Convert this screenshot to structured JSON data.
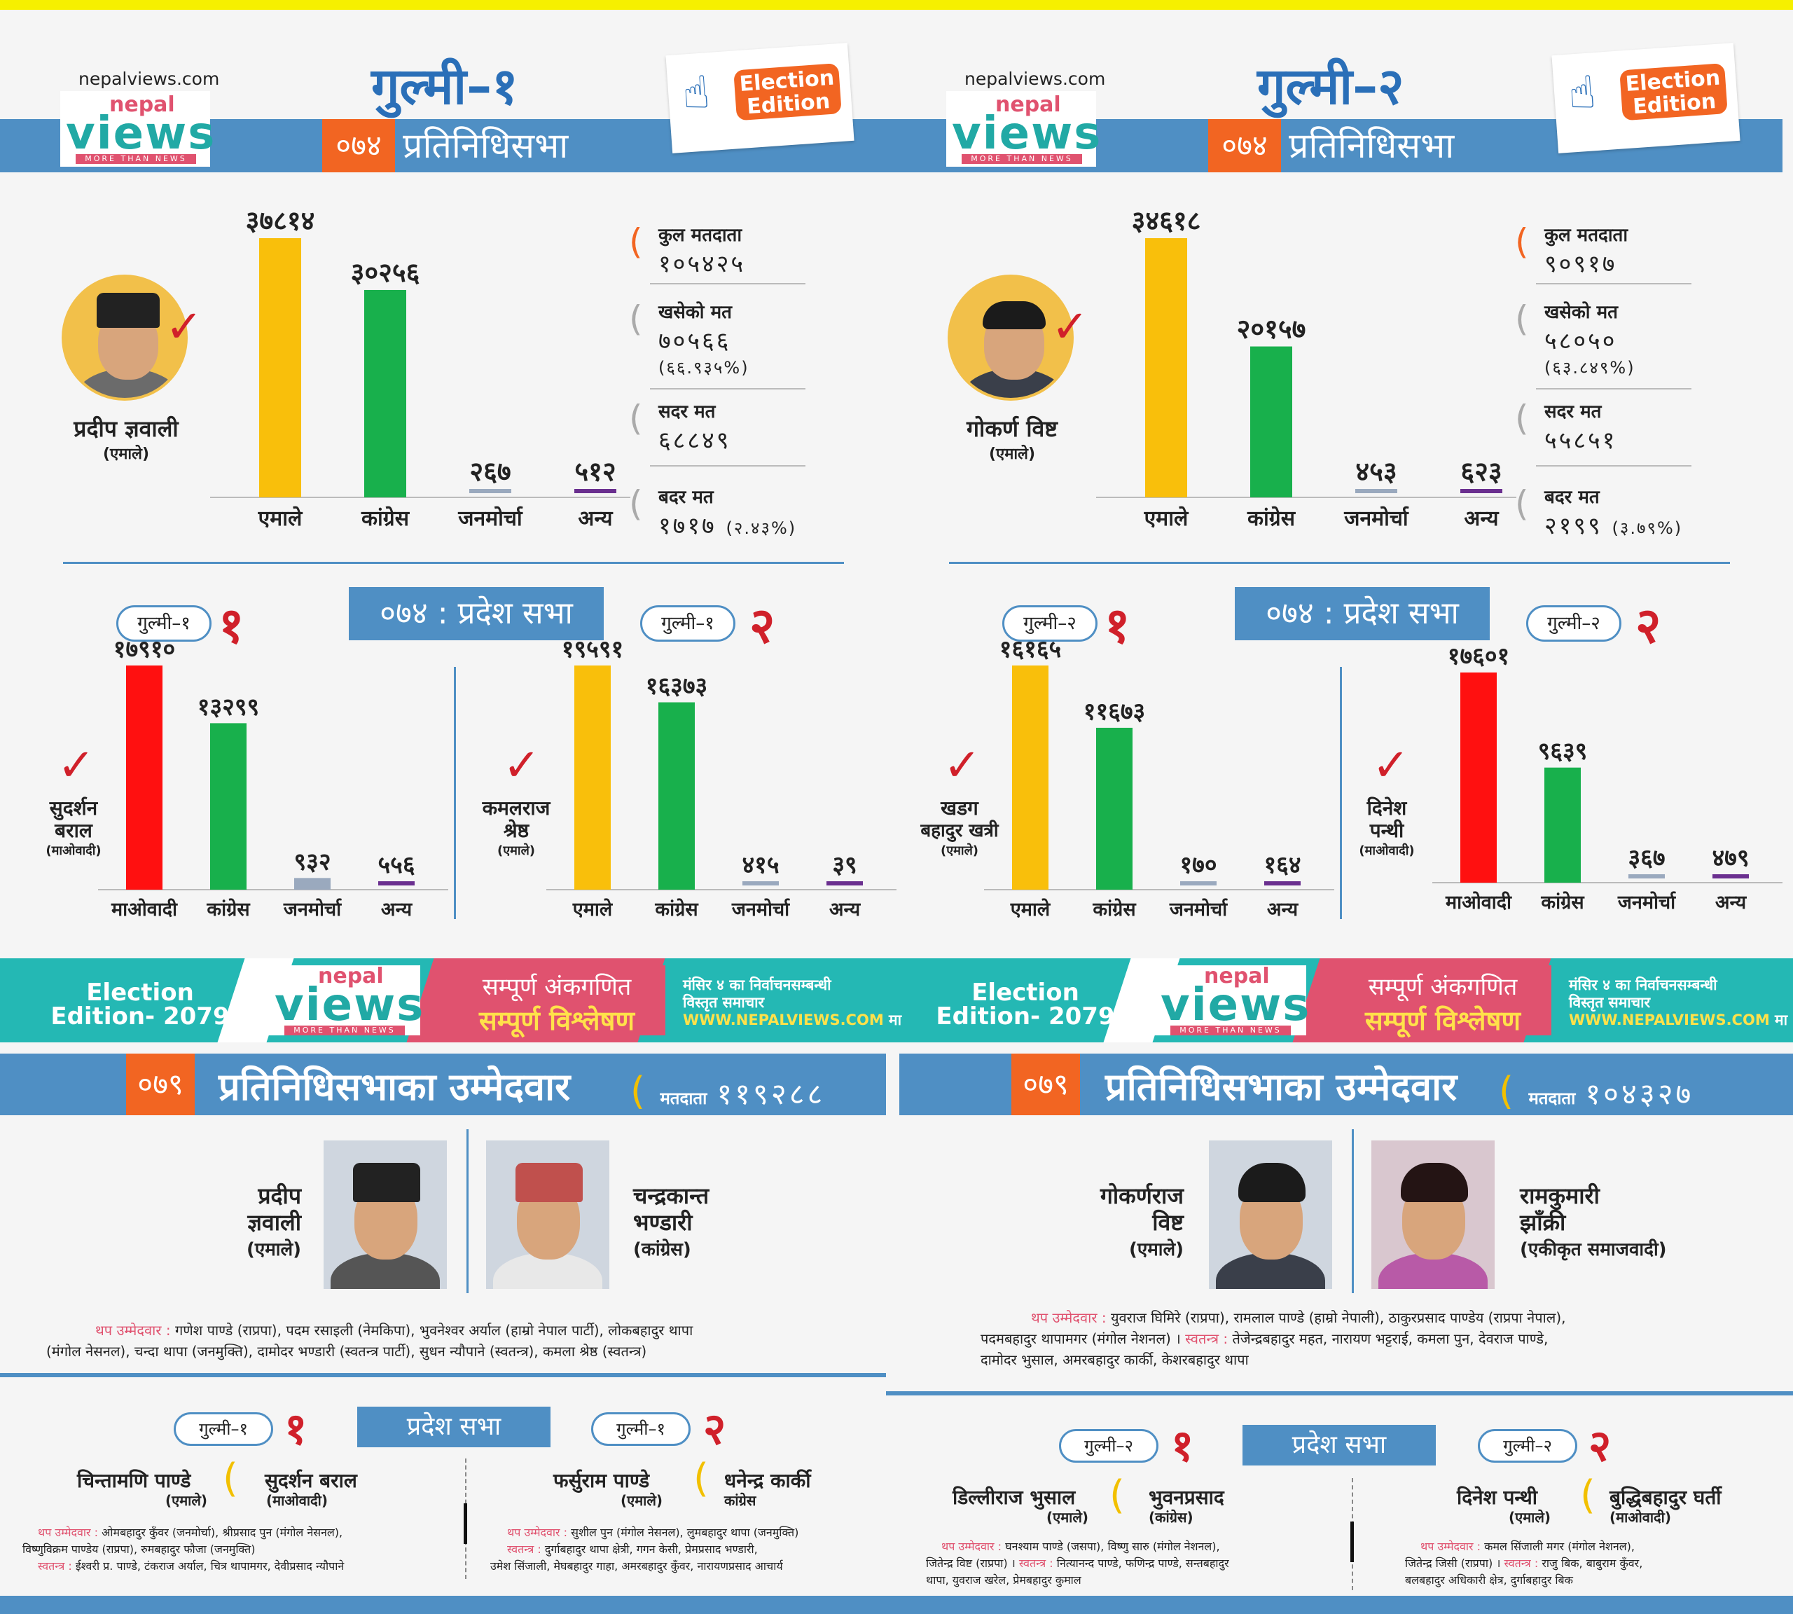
{
  "colors": {
    "uml": "#f9bf0b",
    "congress": "#18b04c",
    "janamorcha": "#9aa9be",
    "anya": "#6a2f8f",
    "maoist": "#ff1010",
    "accent": "#4f8fc4",
    "orange": "#f26522",
    "red": "#d0202a"
  },
  "site": "nepalviews.com",
  "logo": {
    "top": "nepal",
    "main": "views",
    "tag": "MORE THAN NEWS"
  },
  "badge": "Election Edition",
  "hor_label": "प्रतिनिधिसभा",
  "year74": "०७४",
  "pradesh_title": "०७४ : प्रदेश सभा",
  "panels": [
    {
      "seat": "गुल्मी–१",
      "winner": {
        "name": "प्रदीप ज्ञवाली",
        "party": "(एमाले)"
      },
      "stats": {
        "kul_label": "कुल मतदाता",
        "kul": "१०५४२५",
        "khaseko_label": "खसेको मत",
        "khaseko": "७०५६६",
        "khaseko_pct": "(६६.९३५%)",
        "sadar_label": "सदर मत",
        "sadar": "६८८४९",
        "badar_label": "बदर मत",
        "badar": "१७१७",
        "badar_pct": "(२.४३%)"
      },
      "pill1": "गुल्मी–१",
      "num1": "१",
      "pill2": "गुल्मी–१",
      "num2": "२",
      "p1_winner": {
        "name1": "सुदर्शन",
        "name2": "बराल",
        "party": "(माओवादी)"
      },
      "p2_winner": {
        "name1": "कमलराज",
        "name2": "श्रेष्ठ",
        "party": "(एमाले)"
      }
    },
    {
      "seat": "गुल्मी–२",
      "winner": {
        "name": "गोकर्ण विष्ट",
        "party": "(एमाले)"
      },
      "stats": {
        "kul_label": "कुल मतदाता",
        "kul": "९०९१७",
        "khaseko_label": "खसेको मत",
        "khaseko": "५८०५०",
        "khaseko_pct": "(६३.८४९%)",
        "sadar_label": "सदर मत",
        "sadar": "५५८५१",
        "badar_label": "बदर मत",
        "badar": "२१९९",
        "badar_pct": "(३.७९%)"
      },
      "pill1": "गुल्मी–२",
      "num1": "१",
      "pill2": "गुल्मी–२",
      "num2": "२",
      "p1_winner": {
        "name1": "खडग",
        "name2": "बहादुर खत्री",
        "party": "(एमाले)"
      },
      "p2_winner": {
        "name1": "दिनेश",
        "name2": "पन्थी",
        "party": "(माओवादी)"
      }
    }
  ],
  "chart_data": [
    {
      "type": "bar",
      "title": "गुल्मी–१ प्रतिनिधिसभा",
      "categories": [
        "एमाले",
        "कांग्रेस",
        "जनमोर्चा",
        "अन्य"
      ],
      "values": [
        37814,
        30256,
        267,
        512
      ],
      "labels": [
        "३७८१४",
        "३०२५६",
        "२६७",
        "५१२"
      ],
      "colors": [
        "uml",
        "congress",
        "janamorcha",
        "anya"
      ]
    },
    {
      "type": "bar",
      "title": "गुल्मी–२ प्रतिनिधिसभा",
      "categories": [
        "एमाले",
        "कांग्रेस",
        "जनमोर्चा",
        "अन्य"
      ],
      "values": [
        34618,
        20157,
        453,
        623
      ],
      "labels": [
        "३४६१८",
        "२०१५७",
        "४५३",
        "६२३"
      ],
      "colors": [
        "uml",
        "congress",
        "janamorcha",
        "anya"
      ]
    },
    {
      "type": "bar",
      "title": "गुल्मी–१ प्रदेश १",
      "categories": [
        "माओवादी",
        "कांग्रेस",
        "जनमोर्चा",
        "अन्य"
      ],
      "values": [
        17910,
        13299,
        932,
        556
      ],
      "labels": [
        "१७९१०",
        "१३२९९",
        "९३२",
        "५५६"
      ],
      "colors": [
        "maoist",
        "congress",
        "janamorcha",
        "anya"
      ]
    },
    {
      "type": "bar",
      "title": "गुल्मी–१ प्रदेश २",
      "categories": [
        "एमाले",
        "कांग्रेस",
        "जनमोर्चा",
        "अन्य"
      ],
      "values": [
        19591,
        16373,
        415,
        39
      ],
      "labels": [
        "१९५९१",
        "१६३७३",
        "४१५",
        "३९"
      ],
      "colors": [
        "uml",
        "congress",
        "janamorcha",
        "anya"
      ]
    },
    {
      "type": "bar",
      "title": "गुल्मी–२ प्रदेश १",
      "categories": [
        "एमाले",
        "कांग्रेस",
        "जनमोर्चा",
        "अन्य"
      ],
      "values": [
        16165,
        11673,
        170,
        164
      ],
      "labels": [
        "१६१६५",
        "११६७३",
        "१७०",
        "१६४"
      ],
      "colors": [
        "uml",
        "congress",
        "janamorcha",
        "anya"
      ]
    },
    {
      "type": "bar",
      "title": "गुल्मी–२ प्रदेश २",
      "categories": [
        "माओवादी",
        "कांग्रेस",
        "जनमोर्चा",
        "अन्य"
      ],
      "values": [
        17601,
        9639,
        367,
        479
      ],
      "labels": [
        "१७६०१",
        "९६३९",
        "३६७",
        "४७९"
      ],
      "colors": [
        "maoist",
        "congress",
        "janamorcha",
        "anya"
      ]
    }
  ],
  "banner": {
    "edition1": "Election",
    "edition2": "Edition- 2079",
    "red1": "सम्पूर्ण अंकगणित",
    "red2": "सम्पूर्ण विश्लेषण",
    "txt1": "मंसिर ४ का निर्वाचनसम्बन्धी",
    "txt2": "विस्तृत समाचार",
    "www": "WWW.NEPALVIEWS.COM",
    "ma": "मा"
  },
  "c79": {
    "year": "०७९",
    "title": "प्रतिनिधिसभाका उम्मेदवार",
    "voter_label": "मतदाता",
    "left": {
      "voters": "११९२८८",
      "c1": {
        "name1": "प्रदीप",
        "name2": "ज्ञवाली",
        "party": "(एमाले)"
      },
      "c2": {
        "name1": "चन्द्रकान्त",
        "name2": "भण्डारी",
        "party": "(कांग्रेस)"
      },
      "extra_label": "थप उम्मेदवार :",
      "extra1": "गणेश पाण्डे (राप्रपा), पदम रसाइली (नेमकिपा), भुवनेश्वर अर्याल (हाम्रो नेपाल पार्टी), लोकबहादुर थापा",
      "extra2": "(मंगोल नेसनल), चन्दा थापा (जनमुक्ति), दामोदर भण्डारी (स्वतन्त्र पार्टी), सुधन न्यौपाने (स्वतन्त्र), कमला श्रेष्ठ (स्वतन्त्र)",
      "pradesh": "प्रदेश सभा",
      "pill1": "गुल्मी–१",
      "num1": "१",
      "pill2": "गुल्मी–१",
      "num2": "२",
      "p1": {
        "a": "चिन्तामणि पाण्डे",
        "ap": "(एमाले)",
        "b": "सुदर्शन बराल",
        "bp": "(माओवादी)",
        "t1k": "थप उम्मेदवार :",
        "t1": "ओमबहादुर कुँवर (जनमोर्चा), श्रीप्रसाद पुन (मंगोल नेसनल),",
        "t2": "विष्णुविक्रम पाण्डेय (राप्रपा), रुमबहादुर फौजा (जनमुक्ति)",
        "t3k": "स्वतन्त्र :",
        "t3": "ईश्वरी प्र. पाण्डे, टंकराज अर्याल, चित्र थापामगर, देवीप्रसाद न्यौपाने"
      },
      "p2": {
        "a": "फर्सुराम पाण्डे",
        "ap": "(एमाले)",
        "b": "धनेन्द्र कार्की",
        "bp": "कांग्रेस",
        "t1k": "थप उम्मेदवार :",
        "t1": "सुशील पुन (मंगोल नेसनल), लुमबहादुर थापा (जनमुक्ति)",
        "t2k": "स्वतन्त्र :",
        "t2": "दुर्गाबहादुर थापा क्षेत्री, गगन केसी, प्रेमप्रसाद भण्डारी,",
        "t3": "उमेश सिंजाली, मेघबहादुर गाहा, अमरबहादुर कुँवर, नारायणप्रसाद आचार्य"
      }
    },
    "right": {
      "voters": "१०४३२७",
      "c1": {
        "name1": "गोकर्णराज",
        "name2": "विष्ट",
        "party": "(एमाले)"
      },
      "c2": {
        "name1": "रामकुमारी",
        "name2": "झाँक्री",
        "party": "(एकीकृत समाजवादी)"
      },
      "extra_label": "थप उम्मेदवार :",
      "extra1": "युवराज घिमिरे (राप्रपा), रामलाल पाण्डे (हाम्रो नेपाली), ठाकुरप्रसाद पाण्डेय (राप्रपा नेपाल),",
      "extra2a": "पदमबहादुर थापामगर (मंगोल नेशनल) ।",
      "extra2k": "स्वतन्त्र :",
      "extra2b": "तेजेन्द्रबहादुर महत, नारायण भट्टराई, कमला पुन, देवराज पाण्डे,",
      "extra3": "दामोदर भुसाल, अमरबहादुर कार्की, केशरबहादुर थापा",
      "pradesh": "प्रदेश सभा",
      "pill1": "गुल्मी–२",
      "num1": "१",
      "pill2": "गुल्मी–२",
      "num2": "२",
      "p1": {
        "a": "डिल्लीराज भुसाल",
        "ap": "(एमाले)",
        "b": "भुवनप्रसाद",
        "bp": "(कांग्रेस)",
        "t1k": "थप उम्मेदवार :",
        "t1": "घनश्याम पाण्डे (जसपा), विष्णु सारु (मंगोल नेशनल),",
        "t2a": "जितेन्द्र विष्ट (राप्रपा) ।",
        "t2k": "स्वतन्त्र :",
        "t2b": "नित्यानन्द पाण्डे, फणिन्द्र पाण्डे, सन्तबहादुर",
        "t3": "थापा, युवराज खरेल, प्रेमबहादुर कुमाल"
      },
      "p2": {
        "a": "दिनेश पन्थी",
        "ap": "(एमाले)",
        "b": "बुद्धिबहादुर घर्ती",
        "bp": "(माओवादी)",
        "t1k": "थप उम्मेदवार :",
        "t1": "कमल सिंजाली मगर (मंगोल नेशनल),",
        "t2a": "जितेन्द्र जिसी (राप्रपा) ।",
        "t2k": "स्वतन्त्र :",
        "t2b": "राजु बिक, बाबुराम कुँवर,",
        "t3": "बलबहादुर अधिकारी क्षेत्र, दुर्गाबहादुर बिक"
      }
    }
  }
}
